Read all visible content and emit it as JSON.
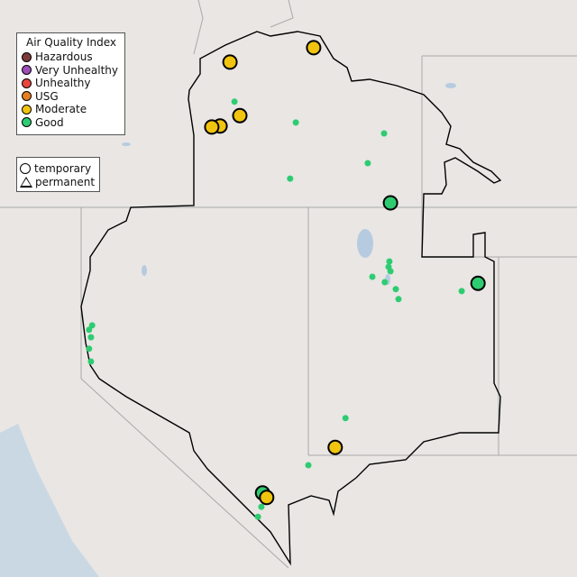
{
  "legend": {
    "title": "Air Quality Index",
    "categories": [
      {
        "label": "Hazardous",
        "color": "#7e3b3b"
      },
      {
        "label": "Very Unhealthy",
        "color": "#9c4fb8"
      },
      {
        "label": "Unhealthy",
        "color": "#e8453c"
      },
      {
        "label": "USG",
        "color": "#e67e22"
      },
      {
        "label": "Moderate",
        "color": "#f1c40f"
      },
      {
        "label": "Good",
        "color": "#2ecc71"
      }
    ],
    "monitor_types": [
      {
        "label": "temporary",
        "shape": "circle"
      },
      {
        "label": "permanent",
        "shape": "triangle"
      }
    ]
  },
  "monitors": [
    {
      "lon": -116.07,
      "lat": 44.93,
      "aqi": "Moderate",
      "size": "large"
    },
    {
      "lon": -113.86,
      "lat": 45.22,
      "aqi": "Moderate",
      "size": "large"
    },
    {
      "lon": -115.81,
      "lat": 43.85,
      "aqi": "Moderate",
      "size": "large"
    },
    {
      "lon": -116.33,
      "lat": 43.64,
      "aqi": "Moderate",
      "size": "large"
    },
    {
      "lon": -116.55,
      "lat": 43.62,
      "aqi": "Moderate",
      "size": "large"
    },
    {
      "lon": -113.29,
      "lat": 37.16,
      "aqi": "Moderate",
      "size": "large"
    },
    {
      "lon": -111.83,
      "lat": 42.09,
      "aqi": "Good",
      "size": "large"
    },
    {
      "lon": -109.52,
      "lat": 40.47,
      "aqi": "Good",
      "size": "large"
    },
    {
      "lon": -115.21,
      "lat": 36.24,
      "aqi": "Good",
      "size": "large"
    },
    {
      "lon": -115.1,
      "lat": 36.15,
      "aqi": "Moderate",
      "size": "large"
    },
    {
      "lon": -115.95,
      "lat": 44.13,
      "aqi": "Good",
      "size": "small"
    },
    {
      "lon": -114.33,
      "lat": 43.71,
      "aqi": "Good",
      "size": "small"
    },
    {
      "lon": -112.0,
      "lat": 43.49,
      "aqi": "Good",
      "size": "small"
    },
    {
      "lon": -112.43,
      "lat": 42.89,
      "aqi": "Good",
      "size": "small"
    },
    {
      "lon": -114.48,
      "lat": 42.58,
      "aqi": "Good",
      "size": "small"
    },
    {
      "lon": -111.86,
      "lat": 40.91,
      "aqi": "Good",
      "size": "small"
    },
    {
      "lon": -111.88,
      "lat": 40.8,
      "aqi": "Good",
      "size": "small"
    },
    {
      "lon": -111.83,
      "lat": 40.71,
      "aqi": "Good",
      "size": "small"
    },
    {
      "lon": -112.31,
      "lat": 40.6,
      "aqi": "Good",
      "size": "small"
    },
    {
      "lon": -111.98,
      "lat": 40.49,
      "aqi": "Good",
      "size": "small"
    },
    {
      "lon": -111.69,
      "lat": 40.35,
      "aqi": "Good",
      "size": "small"
    },
    {
      "lon": -111.62,
      "lat": 40.15,
      "aqi": "Good",
      "size": "small"
    },
    {
      "lon": -109.95,
      "lat": 40.31,
      "aqi": "Good",
      "size": "small"
    },
    {
      "lon": -119.71,
      "lat": 39.62,
      "aqi": "Good",
      "size": "small"
    },
    {
      "lon": -119.79,
      "lat": 39.53,
      "aqi": "Good",
      "size": "small"
    },
    {
      "lon": -119.74,
      "lat": 39.38,
      "aqi": "Good",
      "size": "small"
    },
    {
      "lon": -119.79,
      "lat": 39.15,
      "aqi": "Good",
      "size": "small"
    },
    {
      "lon": -119.74,
      "lat": 38.89,
      "aqi": "Good",
      "size": "small"
    },
    {
      "lon": -113.02,
      "lat": 37.75,
      "aqi": "Good",
      "size": "small"
    },
    {
      "lon": -114.0,
      "lat": 36.8,
      "aqi": "Good",
      "size": "small"
    },
    {
      "lon": -115.24,
      "lat": 35.96,
      "aqi": "Good",
      "size": "small"
    },
    {
      "lon": -115.33,
      "lat": 35.76,
      "aqi": "Good",
      "size": "small"
    }
  ]
}
